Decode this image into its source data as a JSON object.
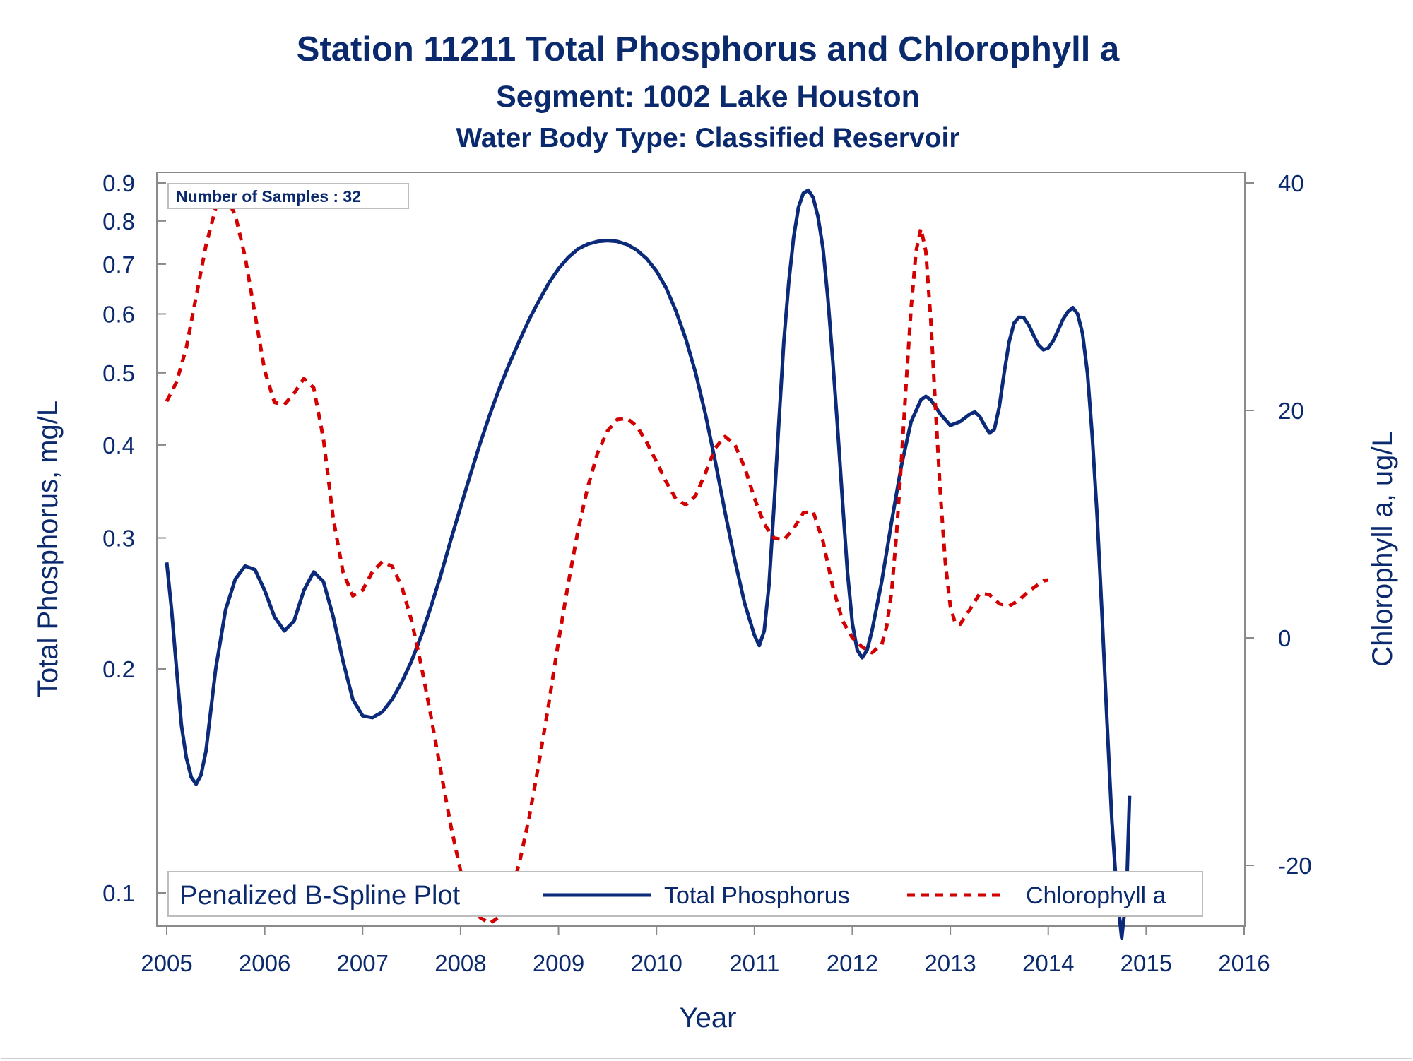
{
  "titles": {
    "main": "Station 11211  Total Phosphorus and Chlorophyll a",
    "segment": "Segment: 1002  Lake Houston",
    "water_body": "Water Body Type: Classified Reservoir"
  },
  "inset": {
    "samples_label": "Number of Samples : 32"
  },
  "legend": {
    "title": "Penalized B-Spline Plot",
    "items": [
      {
        "label": "Total Phosphorus",
        "color": "#0b2a7a",
        "style": "solid"
      },
      {
        "label": "Chlorophyll a",
        "color": "#d20000",
        "style": "dashed"
      }
    ],
    "placement": "bottom-inside"
  },
  "chart_data": {
    "type": "line",
    "title": "Station 11211  Total Phosphorus and Chlorophyll a",
    "xlabel": "Year",
    "ylabel": "Total Phosphorus, mg/L",
    "y2label": "Chlorophyll a, ug/L",
    "xlim": [
      2005,
      2016
    ],
    "ylim": [
      0.09,
      0.9
    ],
    "y_scale": "log",
    "y2lim": [
      -25.5,
      40
    ],
    "grid": false,
    "x_ticks": [
      "2005",
      "2006",
      "2007",
      "2008",
      "2009",
      "2010",
      "2011",
      "2012",
      "2013",
      "2014",
      "2015",
      "2016"
    ],
    "y_ticks": [
      "0.1",
      "0.2",
      "0.3",
      "0.4",
      "0.5",
      "0.6",
      "0.7",
      "0.8",
      "0.9"
    ],
    "y2_ticks": [
      "-20",
      "0",
      "20",
      "40"
    ],
    "series": [
      {
        "name": "Total Phosphorus",
        "axis": "left",
        "color": "#0b2a7a",
        "points": [
          [
            2005.0,
            0.278
          ],
          [
            2005.05,
            0.24
          ],
          [
            2005.1,
            0.2
          ],
          [
            2005.15,
            0.168
          ],
          [
            2005.2,
            0.152
          ],
          [
            2005.25,
            0.143
          ],
          [
            2005.3,
            0.14
          ],
          [
            2005.35,
            0.144
          ],
          [
            2005.4,
            0.155
          ],
          [
            2005.5,
            0.2
          ],
          [
            2005.6,
            0.24
          ],
          [
            2005.7,
            0.264
          ],
          [
            2005.8,
            0.275
          ],
          [
            2005.9,
            0.272
          ],
          [
            2006.0,
            0.255
          ],
          [
            2006.1,
            0.235
          ],
          [
            2006.2,
            0.225
          ],
          [
            2006.3,
            0.232
          ],
          [
            2006.4,
            0.255
          ],
          [
            2006.5,
            0.27
          ],
          [
            2006.6,
            0.262
          ],
          [
            2006.7,
            0.235
          ],
          [
            2006.8,
            0.205
          ],
          [
            2006.9,
            0.182
          ],
          [
            2007.0,
            0.173
          ],
          [
            2007.1,
            0.172
          ],
          [
            2007.2,
            0.175
          ],
          [
            2007.3,
            0.182
          ],
          [
            2007.4,
            0.192
          ],
          [
            2007.5,
            0.205
          ],
          [
            2007.6,
            0.222
          ],
          [
            2007.7,
            0.243
          ],
          [
            2007.8,
            0.268
          ],
          [
            2007.9,
            0.298
          ],
          [
            2008.0,
            0.33
          ],
          [
            2008.1,
            0.365
          ],
          [
            2008.2,
            0.402
          ],
          [
            2008.3,
            0.44
          ],
          [
            2008.4,
            0.478
          ],
          [
            2008.5,
            0.515
          ],
          [
            2008.6,
            0.552
          ],
          [
            2008.7,
            0.59
          ],
          [
            2008.8,
            0.625
          ],
          [
            2008.9,
            0.66
          ],
          [
            2009.0,
            0.69
          ],
          [
            2009.1,
            0.715
          ],
          [
            2009.2,
            0.734
          ],
          [
            2009.3,
            0.745
          ],
          [
            2009.4,
            0.751
          ],
          [
            2009.5,
            0.753
          ],
          [
            2009.6,
            0.751
          ],
          [
            2009.7,
            0.744
          ],
          [
            2009.8,
            0.731
          ],
          [
            2009.9,
            0.712
          ],
          [
            2010.0,
            0.685
          ],
          [
            2010.1,
            0.65
          ],
          [
            2010.2,
            0.605
          ],
          [
            2010.3,
            0.555
          ],
          [
            2010.4,
            0.5
          ],
          [
            2010.5,
            0.44
          ],
          [
            2010.6,
            0.38
          ],
          [
            2010.7,
            0.325
          ],
          [
            2010.8,
            0.28
          ],
          [
            2010.9,
            0.245
          ],
          [
            2011.0,
            0.222
          ],
          [
            2011.05,
            0.215
          ],
          [
            2011.1,
            0.225
          ],
          [
            2011.15,
            0.26
          ],
          [
            2011.2,
            0.33
          ],
          [
            2011.25,
            0.43
          ],
          [
            2011.3,
            0.55
          ],
          [
            2011.35,
            0.66
          ],
          [
            2011.4,
            0.76
          ],
          [
            2011.45,
            0.835
          ],
          [
            2011.5,
            0.872
          ],
          [
            2011.55,
            0.88
          ],
          [
            2011.6,
            0.86
          ],
          [
            2011.65,
            0.81
          ],
          [
            2011.7,
            0.735
          ],
          [
            2011.75,
            0.63
          ],
          [
            2011.8,
            0.52
          ],
          [
            2011.85,
            0.42
          ],
          [
            2011.9,
            0.335
          ],
          [
            2011.95,
            0.27
          ],
          [
            2012.0,
            0.23
          ],
          [
            2012.05,
            0.212
          ],
          [
            2012.1,
            0.207
          ],
          [
            2012.15,
            0.212
          ],
          [
            2012.2,
            0.225
          ],
          [
            2012.3,
            0.262
          ],
          [
            2012.4,
            0.315
          ],
          [
            2012.5,
            0.375
          ],
          [
            2012.6,
            0.43
          ],
          [
            2012.7,
            0.46
          ],
          [
            2012.75,
            0.465
          ],
          [
            2012.8,
            0.46
          ],
          [
            2012.9,
            0.44
          ],
          [
            2013.0,
            0.425
          ],
          [
            2013.1,
            0.43
          ],
          [
            2013.2,
            0.44
          ],
          [
            2013.25,
            0.443
          ],
          [
            2013.3,
            0.437
          ],
          [
            2013.35,
            0.425
          ],
          [
            2013.4,
            0.415
          ],
          [
            2013.45,
            0.42
          ],
          [
            2013.5,
            0.45
          ],
          [
            2013.55,
            0.5
          ],
          [
            2013.6,
            0.55
          ],
          [
            2013.65,
            0.583
          ],
          [
            2013.7,
            0.594
          ],
          [
            2013.75,
            0.593
          ],
          [
            2013.8,
            0.58
          ],
          [
            2013.85,
            0.562
          ],
          [
            2013.9,
            0.545
          ],
          [
            2013.95,
            0.537
          ],
          [
            2014.0,
            0.54
          ],
          [
            2014.05,
            0.552
          ],
          [
            2014.1,
            0.57
          ],
          [
            2014.15,
            0.59
          ],
          [
            2014.2,
            0.604
          ],
          [
            2014.25,
            0.612
          ],
          [
            2014.3,
            0.6
          ],
          [
            2014.35,
            0.565
          ],
          [
            2014.4,
            0.5
          ],
          [
            2014.45,
            0.41
          ],
          [
            2014.5,
            0.32
          ],
          [
            2014.55,
            0.235
          ],
          [
            2014.6,
            0.17
          ],
          [
            2014.65,
            0.125
          ],
          [
            2014.7,
            0.1
          ],
          [
            2014.75,
            0.087
          ],
          [
            2014.8,
            0.1
          ],
          [
            2014.83,
            0.135
          ]
        ]
      },
      {
        "name": "Chlorophyll a",
        "axis": "right",
        "color": "#d20000",
        "points": [
          [
            2005.0,
            20.8
          ],
          [
            2005.1,
            22.5
          ],
          [
            2005.2,
            25.5
          ],
          [
            2005.3,
            30.0
          ],
          [
            2005.4,
            34.5
          ],
          [
            2005.5,
            37.8
          ],
          [
            2005.6,
            38.8
          ],
          [
            2005.7,
            37.2
          ],
          [
            2005.8,
            33.5
          ],
          [
            2005.9,
            28.5
          ],
          [
            2006.0,
            23.5
          ],
          [
            2006.1,
            20.7
          ],
          [
            2006.2,
            20.5
          ],
          [
            2006.3,
            21.5
          ],
          [
            2006.4,
            22.8
          ],
          [
            2006.5,
            22.0
          ],
          [
            2006.6,
            17.5
          ],
          [
            2006.7,
            10.5
          ],
          [
            2006.8,
            5.8
          ],
          [
            2006.9,
            3.7
          ],
          [
            2007.0,
            4.2
          ],
          [
            2007.1,
            5.8
          ],
          [
            2007.2,
            6.7
          ],
          [
            2007.3,
            6.3
          ],
          [
            2007.4,
            4.5
          ],
          [
            2007.5,
            1.5
          ],
          [
            2007.6,
            -2.5
          ],
          [
            2007.7,
            -7.0
          ],
          [
            2007.8,
            -11.8
          ],
          [
            2007.9,
            -16.5
          ],
          [
            2008.0,
            -20.5
          ],
          [
            2008.1,
            -23.2
          ],
          [
            2008.2,
            -24.6
          ],
          [
            2008.3,
            -25.1
          ],
          [
            2008.4,
            -24.5
          ],
          [
            2008.5,
            -22.8
          ],
          [
            2008.6,
            -19.8
          ],
          [
            2008.7,
            -15.8
          ],
          [
            2008.8,
            -11.0
          ],
          [
            2008.9,
            -5.8
          ],
          [
            2009.0,
            -0.3
          ],
          [
            2009.1,
            4.8
          ],
          [
            2009.2,
            9.5
          ],
          [
            2009.3,
            13.3
          ],
          [
            2009.4,
            16.3
          ],
          [
            2009.5,
            18.2
          ],
          [
            2009.6,
            19.2
          ],
          [
            2009.7,
            19.3
          ],
          [
            2009.8,
            18.6
          ],
          [
            2009.9,
            17.2
          ],
          [
            2010.0,
            15.5
          ],
          [
            2010.1,
            13.7
          ],
          [
            2010.2,
            12.2
          ],
          [
            2010.3,
            11.7
          ],
          [
            2010.4,
            12.5
          ],
          [
            2010.5,
            14.5
          ],
          [
            2010.6,
            16.7
          ],
          [
            2010.7,
            17.7
          ],
          [
            2010.8,
            17.0
          ],
          [
            2010.9,
            15.0
          ],
          [
            2011.0,
            12.3
          ],
          [
            2011.1,
            10.0
          ],
          [
            2011.2,
            8.8
          ],
          [
            2011.3,
            8.6
          ],
          [
            2011.4,
            9.6
          ],
          [
            2011.5,
            11.0
          ],
          [
            2011.6,
            11.1
          ],
          [
            2011.7,
            8.5
          ],
          [
            2011.8,
            4.5
          ],
          [
            2011.9,
            1.5
          ],
          [
            2012.0,
            0.0
          ],
          [
            2012.1,
            -0.8
          ],
          [
            2012.2,
            -1.3
          ],
          [
            2012.3,
            -0.6
          ],
          [
            2012.35,
            1.0
          ],
          [
            2012.4,
            4.0
          ],
          [
            2012.45,
            9.0
          ],
          [
            2012.5,
            15.5
          ],
          [
            2012.55,
            22.5
          ],
          [
            2012.6,
            29.0
          ],
          [
            2012.65,
            34.0
          ],
          [
            2012.7,
            36.0
          ],
          [
            2012.75,
            34.0
          ],
          [
            2012.8,
            28.0
          ],
          [
            2012.85,
            20.0
          ],
          [
            2012.9,
            12.5
          ],
          [
            2012.95,
            6.5
          ],
          [
            2013.0,
            2.8
          ],
          [
            2013.05,
            1.3
          ],
          [
            2013.1,
            1.2
          ],
          [
            2013.2,
            2.5
          ],
          [
            2013.3,
            3.9
          ],
          [
            2013.4,
            3.8
          ],
          [
            2013.5,
            3.0
          ],
          [
            2013.6,
            2.8
          ],
          [
            2013.7,
            3.3
          ],
          [
            2013.8,
            4.1
          ],
          [
            2013.9,
            4.7
          ],
          [
            2013.95,
            5.0
          ],
          [
            2014.0,
            5.1
          ]
        ]
      }
    ]
  }
}
